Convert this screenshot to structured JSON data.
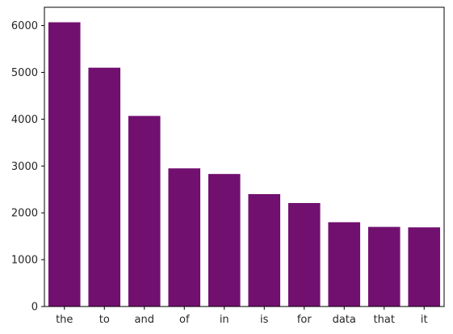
{
  "chart_data": {
    "type": "bar",
    "categories": [
      "the",
      "to",
      "and",
      "of",
      "in",
      "is",
      "for",
      "data",
      "that",
      "it"
    ],
    "values": [
      6070,
      5100,
      4070,
      2950,
      2830,
      2400,
      2210,
      1800,
      1700,
      1690
    ],
    "title": "",
    "xlabel": "",
    "ylabel": "",
    "ylim": [
      0,
      6390
    ],
    "yticks": [
      0,
      1000,
      2000,
      3000,
      4000,
      5000,
      6000
    ],
    "grid": false,
    "bar_color": "#721070"
  }
}
